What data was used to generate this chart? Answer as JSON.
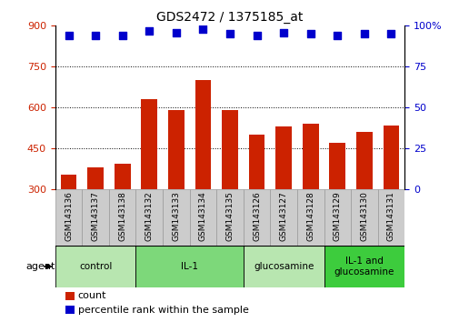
{
  "title": "GDS2472 / 1375185_at",
  "categories": [
    "GSM143136",
    "GSM143137",
    "GSM143138",
    "GSM143132",
    "GSM143133",
    "GSM143134",
    "GSM143135",
    "GSM143126",
    "GSM143127",
    "GSM143128",
    "GSM143129",
    "GSM143130",
    "GSM143131"
  ],
  "counts": [
    355,
    380,
    395,
    630,
    590,
    700,
    592,
    500,
    530,
    540,
    470,
    510,
    535
  ],
  "percentiles": [
    94,
    94,
    94,
    97,
    96,
    98,
    95,
    94,
    96,
    95,
    94,
    95,
    95
  ],
  "groups": [
    {
      "label": "control",
      "start": 0,
      "end": 3,
      "color": "#b8e6b0"
    },
    {
      "label": "IL-1",
      "start": 3,
      "end": 7,
      "color": "#7dd87a"
    },
    {
      "label": "glucosamine",
      "start": 7,
      "end": 10,
      "color": "#b8e6b0"
    },
    {
      "label": "IL-1 and\nglucosamine",
      "start": 10,
      "end": 13,
      "color": "#3dcc3d"
    }
  ],
  "bar_color": "#cc2200",
  "dot_color": "#0000cc",
  "ylim_left": [
    300,
    900
  ],
  "ylim_right": [
    0,
    100
  ],
  "yticks_left": [
    300,
    450,
    600,
    750,
    900
  ],
  "yticks_right": [
    0,
    25,
    50,
    75,
    100
  ],
  "bar_width": 0.6,
  "background_color": "#ffffff",
  "tick_label_color_left": "#cc2200",
  "tick_label_color_right": "#0000cc",
  "grid_lines": [
    450,
    600,
    750
  ],
  "xlabel_gray": "#cccccc",
  "xlabel_gray_border": "#999999"
}
